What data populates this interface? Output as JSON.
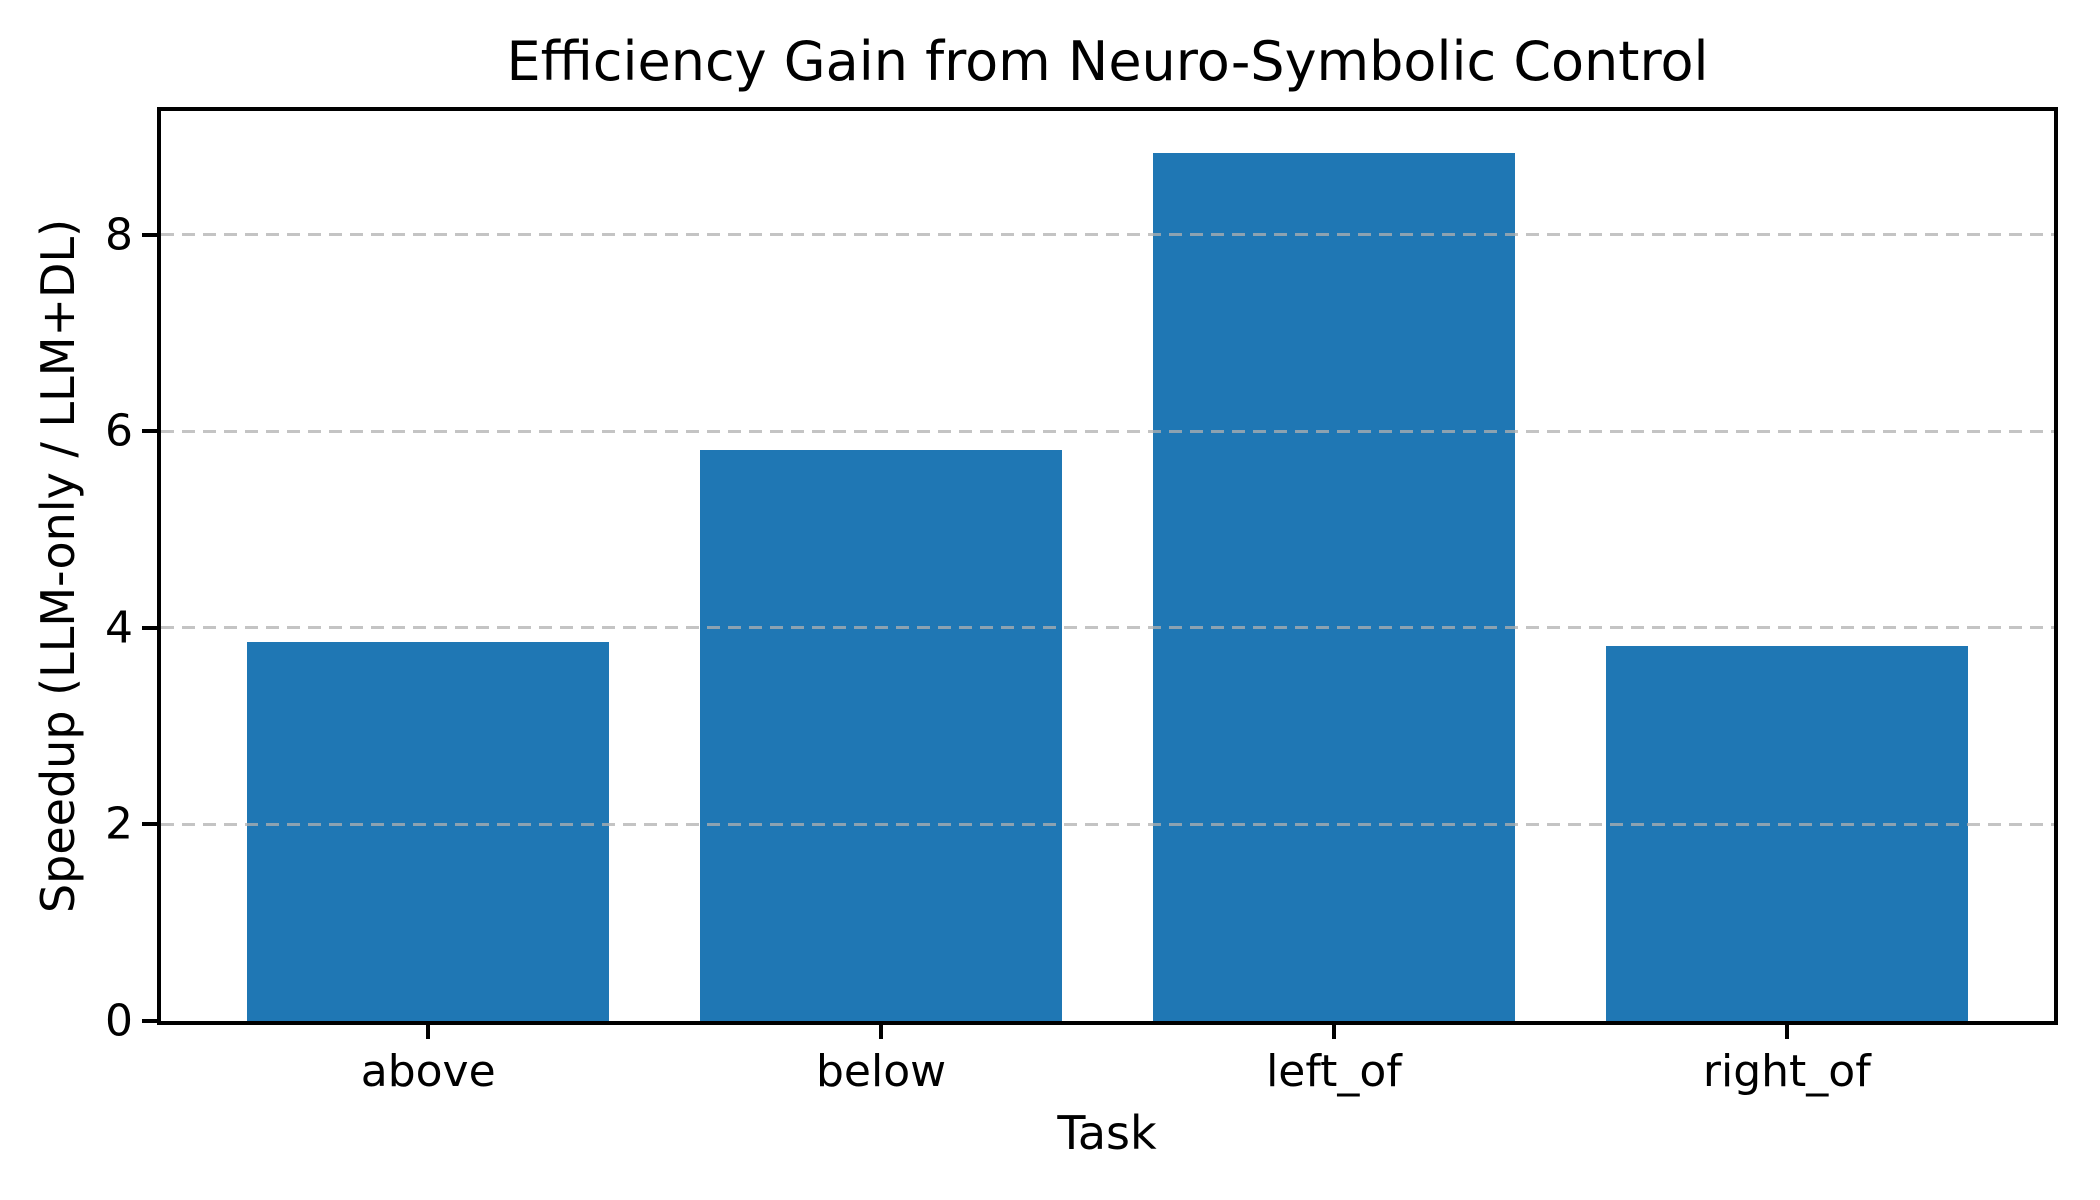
{
  "chart_data": {
    "type": "bar",
    "title": "Efficiency Gain from Neuro-Symbolic Control",
    "xlabel": "Task",
    "ylabel": "Speedup (LLM-only / LLM+DL)",
    "categories": [
      "above",
      "below",
      "left_of",
      "right_of"
    ],
    "values": [
      3.86,
      5.81,
      8.83,
      3.82
    ],
    "yticks": [
      0,
      2,
      4,
      6,
      8
    ],
    "ylim": [
      0,
      9.26
    ],
    "xlim": [
      -0.59,
      3.59
    ],
    "bar_width": 0.8,
    "legend": "none",
    "grid": "y-axis, dashed, drawn above bars",
    "bar_color": "#1f77b4",
    "grid_color": "#b0b0b0",
    "grid_alpha": 0.75,
    "axis_color": "#000000",
    "background_color": "#ffffff"
  }
}
